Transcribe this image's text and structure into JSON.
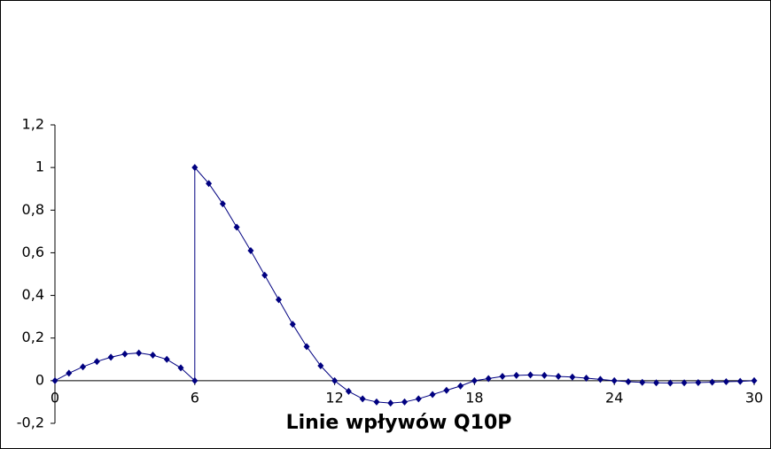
{
  "chart_data": {
    "type": "line",
    "title": "Linie wpływów Q10P",
    "x": [
      0,
      0.6,
      1.2,
      1.8,
      2.4,
      3,
      3.6,
      4.2,
      4.8,
      5.4,
      6,
      6,
      6.6,
      7.2,
      7.8,
      8.4,
      9,
      9.6,
      10.2,
      10.8,
      11.4,
      12,
      12.6,
      13.2,
      13.8,
      14.4,
      15,
      15.6,
      16.2,
      16.8,
      17.4,
      18,
      18.6,
      19.2,
      19.8,
      20.4,
      21,
      21.6,
      22.2,
      22.8,
      23.4,
      24,
      24.6,
      25.2,
      25.8,
      26.4,
      27,
      27.6,
      28.2,
      28.8,
      29.4,
      30
    ],
    "series": [
      {
        "color": "#000080",
        "values": [
          0,
          0.035,
          0.065,
          0.09,
          0.11,
          0.125,
          0.13,
          0.12,
          0.1,
          0.06,
          0,
          1,
          0.925,
          0.83,
          0.72,
          0.61,
          0.495,
          0.38,
          0.265,
          0.16,
          0.07,
          0,
          -0.05,
          -0.085,
          -0.1,
          -0.105,
          -0.1,
          -0.085,
          -0.065,
          -0.045,
          -0.025,
          0,
          0.01,
          0.02,
          0.025,
          0.027,
          0.025,
          0.02,
          0.017,
          0.012,
          0.006,
          0,
          -0.005,
          -0.008,
          -0.01,
          -0.011,
          -0.01,
          -0.009,
          -0.007,
          -0.005,
          -0.003,
          0
        ]
      }
    ],
    "xlim": [
      0,
      30
    ],
    "xticks": [
      0,
      6,
      12,
      18,
      24,
      30
    ],
    "ylim": [
      -0.2,
      1.2
    ],
    "yticks": [
      {
        "value": -0.2,
        "label": "-0,2"
      },
      0,
      {
        "value": 0.2,
        "label": "0,2"
      },
      {
        "value": 0.4,
        "label": "0,4"
      },
      {
        "value": 0.6,
        "label": "0,6"
      },
      {
        "value": 0.8,
        "label": "0,8"
      },
      1,
      {
        "value": 1.2,
        "label": "1,2"
      }
    ]
  }
}
